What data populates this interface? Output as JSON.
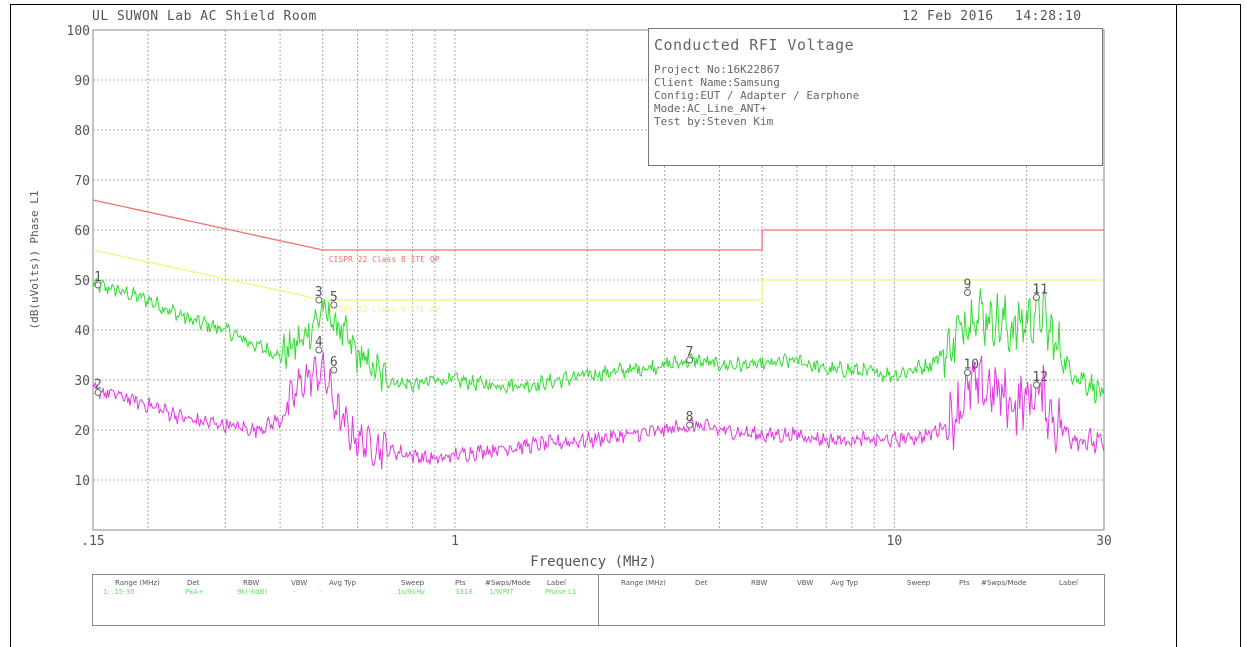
{
  "header": {
    "lab": "UL SUWON Lab AC Shield Room",
    "date": "12 Feb 2016",
    "time": "14:28:10"
  },
  "info_box": {
    "title": "Conducted RFI Voltage",
    "lines": [
      "Project No:16K22867",
      "Client Name:Samsung",
      "Config:EUT / Adapter / Earphone",
      "Mode:AC_Line_ANT+",
      "Test by:Steven Kim"
    ]
  },
  "legend": {
    "headers_left": [
      "Range (MHz)",
      "Det",
      "RBW",
      "VBW",
      "Avg Typ",
      "Sweep",
      "Pts",
      "#Swps/Mode",
      "Label"
    ],
    "values_left": [
      "1: .15-30",
      "PkA+",
      "9k(-6dB)",
      "-",
      "-",
      ".1s/9kHz",
      "3318",
      "1/WRIT",
      "Phase L1"
    ],
    "headers_right": [
      "Range (MHz)",
      "Det",
      "RBW",
      "VBW",
      "Avg Typ",
      "Sweep",
      "Pts",
      "#Swps/Mode",
      "Label"
    ]
  },
  "colors": {
    "qp_limit": "#f07070",
    "avg_limit": "#f4f47a",
    "peak_trace": "#33dd33",
    "avg_trace": "#e23be2",
    "grid": "#aaaaaa"
  },
  "chart_data": {
    "type": "line",
    "title": "",
    "xlabel": "Frequency (MHz)",
    "ylabel": "(dB(uVolts)) Phase L1",
    "x_scale": "log",
    "xlim": [
      0.15,
      30
    ],
    "ylim": [
      0,
      100
    ],
    "x_ticks": [
      0.15,
      1,
      10,
      30
    ],
    "x_tick_labels": [
      ".15",
      "1",
      "10",
      "30"
    ],
    "y_ticks": [
      10,
      20,
      30,
      40,
      50,
      60,
      70,
      80,
      90,
      100
    ],
    "y_tick_labels": [
      "10",
      "20",
      "30",
      "40",
      "50",
      "60",
      "70",
      "80",
      "90",
      "100"
    ],
    "grid": true,
    "limit_lines": [
      {
        "name": "CISPR 22 Class B ITE QP",
        "x": [
          0.15,
          0.5,
          0.5,
          5,
          5,
          30
        ],
        "y": [
          66,
          56,
          56,
          56,
          60,
          60
        ]
      },
      {
        "name": "CISPR 22 Class B ITE AV",
        "x": [
          0.15,
          0.5,
          0.5,
          5,
          5,
          30
        ],
        "y": [
          56,
          46,
          46,
          46,
          50,
          50
        ]
      }
    ],
    "series": [
      {
        "x": [
          0.15,
          0.17,
          0.2,
          0.25,
          0.3,
          0.35,
          0.4,
          0.45,
          0.5,
          0.55,
          0.6,
          0.7,
          0.8,
          0.9,
          1.0,
          1.2,
          1.5,
          2.0,
          2.5,
          3.0,
          3.5,
          4.0,
          5.0,
          6.0,
          7.0,
          8.0,
          10.0,
          12.0,
          13.5,
          15.0,
          17.0,
          18.5,
          20.0,
          21.5,
          23.0,
          25.0,
          27.0,
          30.0
        ],
        "y": [
          49,
          48,
          46,
          42,
          40,
          37,
          35,
          38,
          44,
          40,
          35,
          30,
          29,
          30,
          30,
          29,
          29,
          31,
          32,
          33,
          34,
          33,
          33,
          34,
          32,
          32,
          31,
          33,
          37,
          44,
          42,
          40,
          42,
          44,
          38,
          32,
          30,
          27
        ]
      },
      {
        "x": [
          0.15,
          0.17,
          0.2,
          0.25,
          0.3,
          0.35,
          0.4,
          0.45,
          0.5,
          0.55,
          0.6,
          0.7,
          0.8,
          0.9,
          1.0,
          1.2,
          1.5,
          2.0,
          2.5,
          3.0,
          3.5,
          4.0,
          5.0,
          6.0,
          7.0,
          8.0,
          10.0,
          12.0,
          13.5,
          15.0,
          17.0,
          18.5,
          20.0,
          21.5,
          23.0,
          25.0,
          27.0,
          30.0
        ],
        "y": [
          28,
          27,
          25,
          22,
          21,
          20,
          22,
          30,
          32,
          22,
          18,
          16,
          15,
          14,
          15,
          16,
          17,
          18,
          19,
          20,
          21,
          20,
          19,
          19,
          18,
          18,
          18,
          19,
          22,
          29,
          28,
          25,
          26,
          28,
          22,
          19,
          18,
          17
        ]
      }
    ],
    "markers": [
      {
        "label": "1",
        "x": 0.154,
        "y": 49
      },
      {
        "label": "2",
        "x": 0.154,
        "y": 27.5
      },
      {
        "label": "3",
        "x": 0.49,
        "y": 46
      },
      {
        "label": "4",
        "x": 0.49,
        "y": 36
      },
      {
        "label": "5",
        "x": 0.53,
        "y": 45
      },
      {
        "label": "6",
        "x": 0.53,
        "y": 32
      },
      {
        "label": "7",
        "x": 3.42,
        "y": 34
      },
      {
        "label": "8",
        "x": 3.42,
        "y": 21
      },
      {
        "label": "9",
        "x": 14.67,
        "y": 47.5
      },
      {
        "label": "10",
        "x": 14.67,
        "y": 31.5
      },
      {
        "label": "11",
        "x": 21.05,
        "y": 46.5
      },
      {
        "label": "12",
        "x": 21.05,
        "y": 29
      }
    ]
  }
}
